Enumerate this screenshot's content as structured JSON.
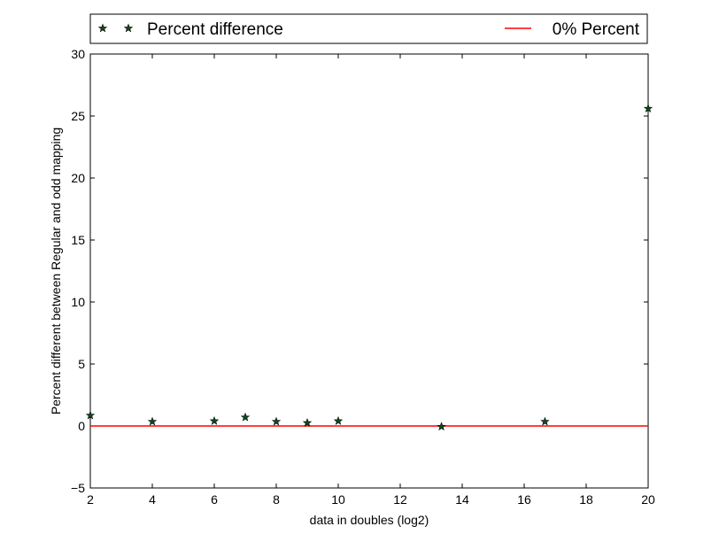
{
  "chart_data": {
    "type": "scatter",
    "xlabel": "data in doubles (log2)",
    "ylabel": "Percent different between Regular and odd mapping",
    "xlim": [
      2,
      20
    ],
    "ylim": [
      -5,
      30
    ],
    "xticks": [
      2,
      4,
      6,
      8,
      10,
      12,
      14,
      16,
      18,
      20
    ],
    "yticks": [
      -5,
      0,
      5,
      10,
      15,
      20,
      25,
      30
    ],
    "legend": {
      "placement": "top, above plot",
      "mode": "expanded"
    },
    "series": [
      {
        "name": "Percent difference",
        "marker": "star",
        "color": "#0a4f1e",
        "points": [
          {
            "x": 2,
            "y": 0.85
          },
          {
            "x": 4,
            "y": 0.35
          },
          {
            "x": 6,
            "y": 0.4
          },
          {
            "x": 7,
            "y": 0.7
          },
          {
            "x": 8,
            "y": 0.35
          },
          {
            "x": 9,
            "y": 0.25
          },
          {
            "x": 10,
            "y": 0.4
          },
          {
            "x": 13.33,
            "y": -0.05
          },
          {
            "x": 16.67,
            "y": 0.35
          },
          {
            "x": 20,
            "y": 25.6
          }
        ]
      },
      {
        "name": "0% Percent",
        "line": "solid",
        "color": "#ff0000",
        "y": 0
      }
    ]
  }
}
